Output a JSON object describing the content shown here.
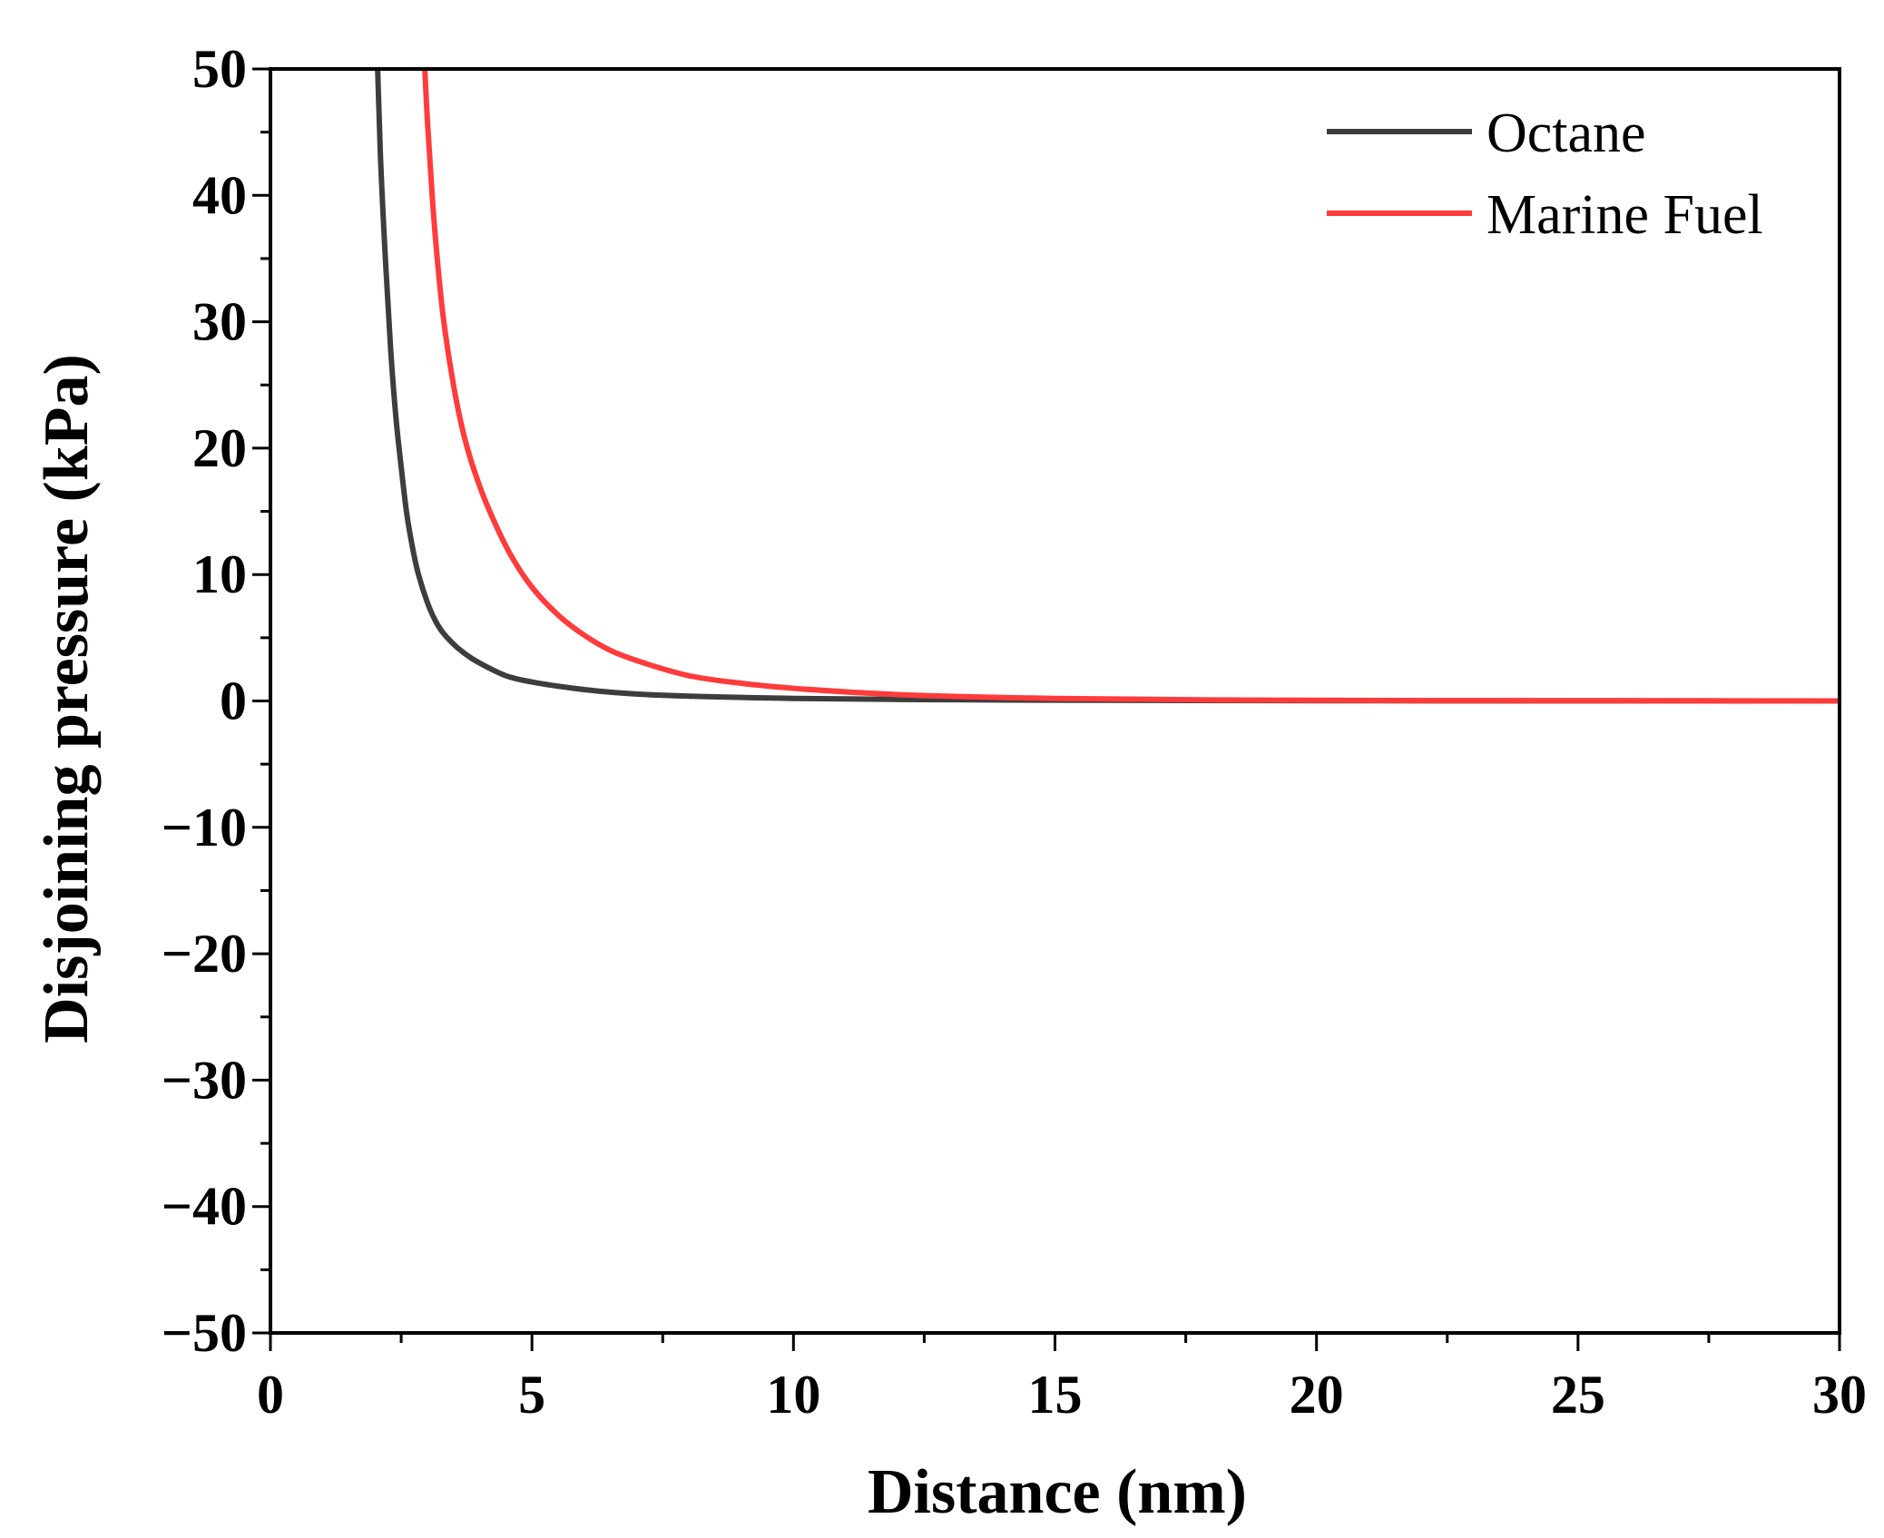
{
  "chart_data": {
    "type": "line",
    "title": "",
    "xlabel": "Distance (nm)",
    "ylabel": "Disjoining pressure (kPa)",
    "xlim": [
      0,
      30
    ],
    "ylim": [
      -50,
      50
    ],
    "x_ticks": [
      0,
      5,
      10,
      15,
      20,
      25,
      30
    ],
    "x_tick_labels": [
      "0",
      "5",
      "10",
      "15",
      "20",
      "25",
      "30"
    ],
    "y_ticks": [
      50,
      40,
      30,
      20,
      10,
      0,
      -10,
      -20,
      -30,
      -40,
      -50
    ],
    "y_tick_labels": [
      "50",
      "40",
      "30",
      "20",
      "10",
      "0",
      "−10",
      "−20",
      "−30",
      "−40",
      "−50"
    ],
    "grid": false,
    "legend_position": "top-right",
    "series": [
      {
        "name": "Octane",
        "color": "#3d3d3d",
        "x": [
          2.05,
          2.1,
          2.2,
          2.3,
          2.4,
          2.5,
          2.6,
          2.7,
          2.8,
          3.0,
          3.2,
          3.5,
          3.8,
          4.0,
          4.5,
          5.0,
          6.0,
          7.0,
          8.0,
          10.0,
          12.0,
          15.0,
          20.0,
          25.0,
          30.0
        ],
        "y": [
          50,
          43.5,
          34.8,
          27.7,
          22.4,
          18.5,
          15.0,
          12.5,
          10.5,
          7.8,
          6.0,
          4.5,
          3.5,
          3.0,
          2.0,
          1.5,
          0.9,
          0.55,
          0.38,
          0.2,
          0.12,
          0.06,
          0.02,
          0.01,
          0.0
        ]
      },
      {
        "name": "Marine Fuel",
        "color": "#ff3b3b",
        "x": [
          2.95,
          3.0,
          3.1,
          3.2,
          3.3,
          3.5,
          3.7,
          4.0,
          4.3,
          4.6,
          5.0,
          5.5,
          6.0,
          6.5,
          7.0,
          8.0,
          9.0,
          10.0,
          12.0,
          15.0,
          20.0,
          25.0,
          30.0
        ],
        "y": [
          50,
          46.0,
          39.5,
          34.5,
          30.5,
          25.0,
          21.0,
          17.0,
          14.0,
          11.5,
          9.0,
          6.8,
          5.2,
          4.0,
          3.2,
          2.0,
          1.4,
          1.0,
          0.5,
          0.2,
          0.05,
          0.02,
          0.0
        ]
      }
    ]
  }
}
